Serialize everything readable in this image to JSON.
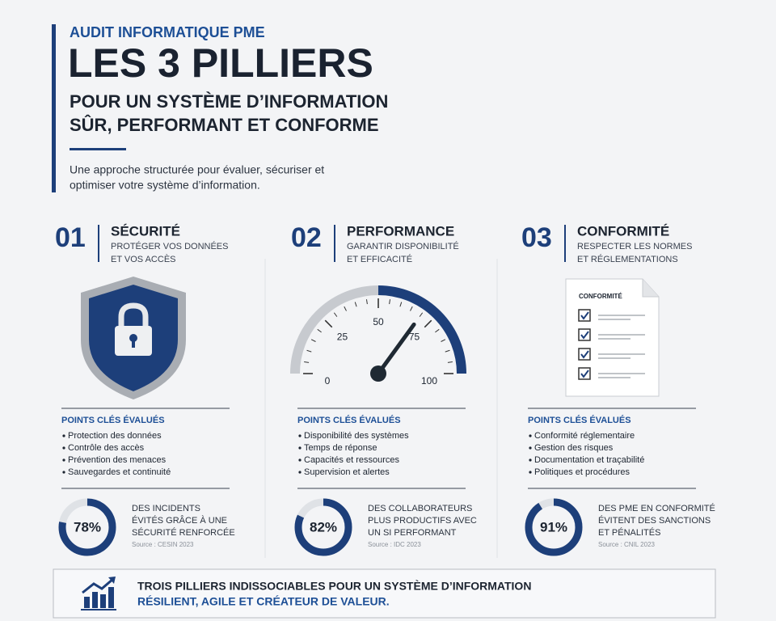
{
  "header": {
    "kicker": "AUDIT INFORMATIQUE PME",
    "title": "LES 3 PILLIERS",
    "subtitle_lines": [
      "POUR UN SYSTÈME D’INFORMATION",
      "SÛR, PERFORMANT ET CONFORME"
    ],
    "intro_lines": [
      "Une approche structurée pour évaluer, sécuriser et",
      "optimiser votre système d’information."
    ]
  },
  "pillars": [
    {
      "number": "01",
      "title": "SÉCURITÉ",
      "subtitle_lines": [
        "PROTÉGER VOS DONNÉES",
        "ET VOS ACCÈS"
      ],
      "points_title": "POINTS CLÉS ÉVALUÉS",
      "points": [
        "Protection des données",
        "Contrôle des accès",
        "Prévention des menaces",
        "Sauvegardes et continuité"
      ],
      "stat": {
        "value": 78,
        "label": "78%",
        "text_lines": [
          "DES INCIDENTS",
          "ÉVITÉS GRÂCE À UNE",
          "SÉCURITÉ RENFORCÉE"
        ],
        "source": "Source : CESIN 2023"
      }
    },
    {
      "number": "02",
      "title": "PERFORMANCE",
      "subtitle_lines": [
        "GARANTIR DISPONIBILITÉ",
        "ET EFFICACITÉ"
      ],
      "gauge": {
        "ticks": [
          0,
          25,
          50,
          75,
          100
        ],
        "value": 70
      },
      "points_title": "POINTS CLÉS ÉVALUÉS",
      "points": [
        "Disponibilité des systèmes",
        "Temps de réponse",
        "Capacités et ressources",
        "Supervision et alertes"
      ],
      "stat": {
        "value": 82,
        "label": "82%",
        "text_lines": [
          "DES COLLABORATEURS",
          "PLUS PRODUCTIFS AVEC",
          "UN SI PERFORMANT"
        ],
        "source": "Source : IDC 2023"
      }
    },
    {
      "number": "03",
      "title": "CONFORMITÉ",
      "subtitle_lines": [
        "RESPECTER LES NORMES",
        "ET RÉGLEMENTATIONS"
      ],
      "document_label": "CONFORMITÉ",
      "points_title": "POINTS CLÉS ÉVALUÉS",
      "points": [
        "Conformité réglementaire",
        "Gestion des risques",
        "Documentation et traçabilité",
        "Politiques et procédures"
      ],
      "stat": {
        "value": 91,
        "label": "91%",
        "text_lines": [
          "DES PME EN CONFORMITÉ",
          "ÉVITENT DES SANCTIONS",
          "ET PÉNALITÉS"
        ],
        "source": "Source : CNIL 2023"
      }
    }
  ],
  "footer": {
    "lines": [
      "TROIS PILLIERS INDISSOCIABLES POUR UN SYSTÈME D’INFORMATION",
      "RÉSILIENT, AGILE ET CRÉATEUR DE VALEUR."
    ]
  }
}
